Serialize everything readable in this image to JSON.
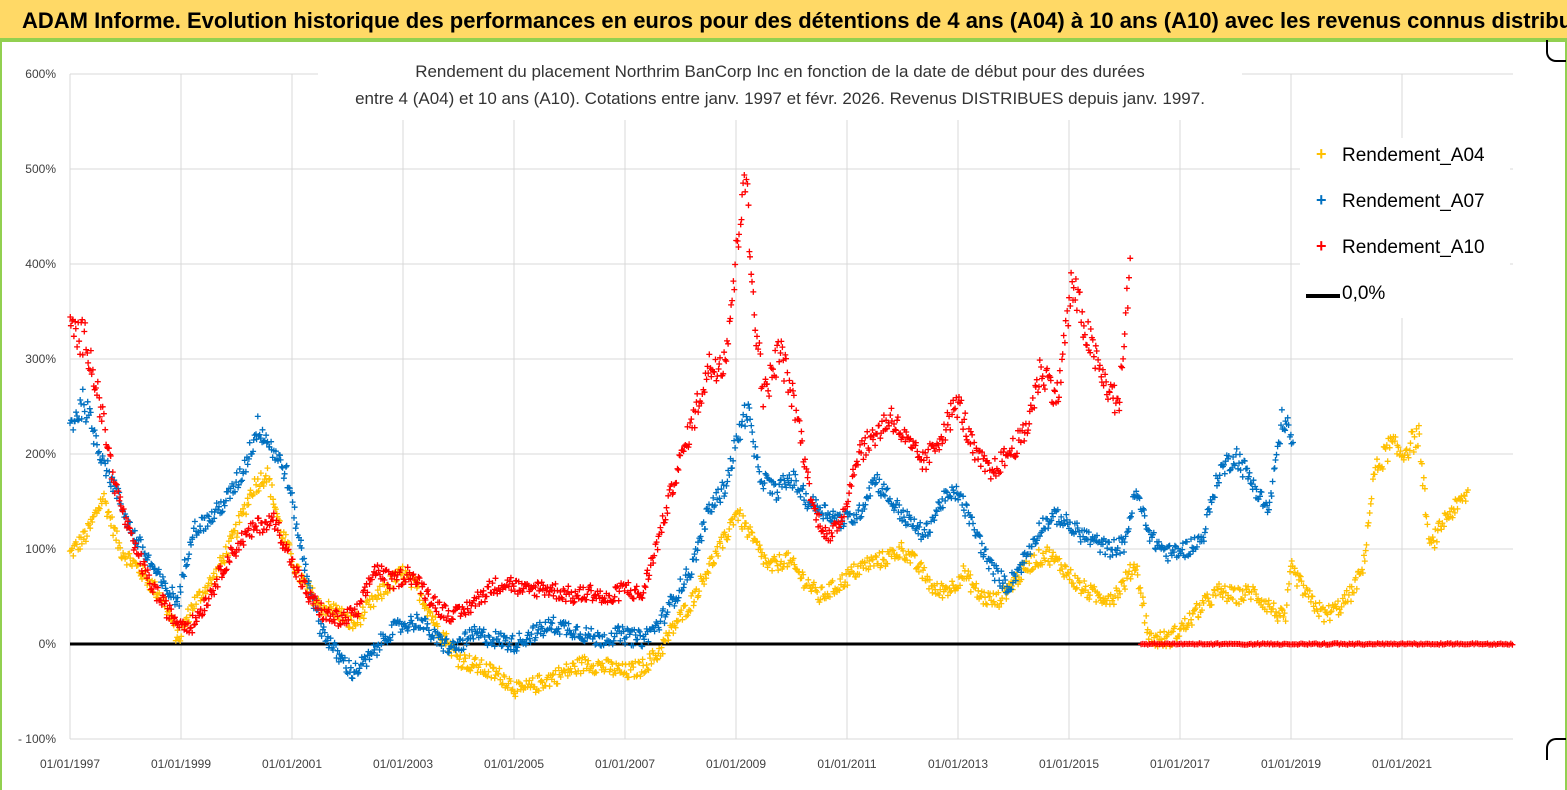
{
  "banner": {
    "title": "ADAM Informe. Evolution historique des performances en euros pour des détentions de 4 ans (A04) à 10 ans (A10) avec les revenus connus distribués"
  },
  "chart_data": {
    "type": "scatter",
    "title_line1": "Rendement du placement Northrim BanCorp Inc en fonction de la date de début pour des durées",
    "title_line2": "entre 4 (A04) et 10 ans (A10).  Cotations entre janv. 1997 et févr. 2026. Revenus DISTRIBUES depuis janv. 1997.",
    "xlim": [
      1997.0,
      2023.0
    ],
    "ylim": [
      -100,
      600
    ],
    "yticks": [
      -100,
      0,
      100,
      200,
      300,
      400,
      500,
      600
    ],
    "ytick_labels": [
      "- 100%",
      "0%",
      "100%",
      "200%",
      "300%",
      "400%",
      "500%",
      "600%"
    ],
    "xticks": [
      1997,
      1999,
      2001,
      2003,
      2005,
      2007,
      2009,
      2011,
      2013,
      2015,
      2017,
      2019,
      2021
    ],
    "xtick_labels": [
      "01/01/1997",
      "01/01/1999",
      "01/01/2001",
      "01/01/2003",
      "01/01/2005",
      "01/01/2007",
      "01/01/2009",
      "01/01/2011",
      "01/01/2013",
      "01/01/2015",
      "01/01/2017",
      "01/01/2019",
      "01/01/2021"
    ],
    "gridlines_at": [
      -100,
      0,
      100,
      200,
      300,
      400,
      500,
      600
    ],
    "legend_position": "top-right",
    "series": [
      {
        "name": "Rendement_A04",
        "color": "#ffc000",
        "marker": "+",
        "x_end": 2022.2,
        "knots": [
          [
            1997.0,
            95
          ],
          [
            1997.3,
            115
          ],
          [
            1997.6,
            155
          ],
          [
            1997.9,
            100
          ],
          [
            1998.3,
            75
          ],
          [
            1998.7,
            45
          ],
          [
            1998.95,
            5
          ],
          [
            1999.2,
            40
          ],
          [
            1999.6,
            70
          ],
          [
            2000.0,
            120
          ],
          [
            2000.3,
            165
          ],
          [
            2000.55,
            180
          ],
          [
            2000.8,
            120
          ],
          [
            2001.1,
            75
          ],
          [
            2001.5,
            40
          ],
          [
            2001.8,
            35
          ],
          [
            2002.1,
            20
          ],
          [
            2002.4,
            40
          ],
          [
            2002.7,
            60
          ],
          [
            2003.0,
            75
          ],
          [
            2003.3,
            55
          ],
          [
            2003.6,
            20
          ],
          [
            2004.0,
            -15
          ],
          [
            2004.4,
            -25
          ],
          [
            2004.8,
            -35
          ],
          [
            2005.1,
            -50
          ],
          [
            2005.5,
            -40
          ],
          [
            2005.9,
            -30
          ],
          [
            2006.3,
            -20
          ],
          [
            2006.7,
            -25
          ],
          [
            2007.0,
            -30
          ],
          [
            2007.3,
            -25
          ],
          [
            2007.6,
            -10
          ],
          [
            2007.9,
            20
          ],
          [
            2008.2,
            45
          ],
          [
            2008.5,
            80
          ],
          [
            2008.8,
            110
          ],
          [
            2009.0,
            140
          ],
          [
            2009.3,
            110
          ],
          [
            2009.6,
            80
          ],
          [
            2009.9,
            90
          ],
          [
            2010.2,
            70
          ],
          [
            2010.5,
            50
          ],
          [
            2010.8,
            60
          ],
          [
            2011.1,
            75
          ],
          [
            2011.4,
            85
          ],
          [
            2011.7,
            90
          ],
          [
            2012.0,
            100
          ],
          [
            2012.3,
            80
          ],
          [
            2012.6,
            55
          ],
          [
            2012.9,
            60
          ],
          [
            2013.1,
            75
          ],
          [
            2013.4,
            50
          ],
          [
            2013.7,
            45
          ],
          [
            2014.0,
            65
          ],
          [
            2014.3,
            85
          ],
          [
            2014.6,
            95
          ],
          [
            2014.9,
            80
          ],
          [
            2015.2,
            60
          ],
          [
            2015.5,
            50
          ],
          [
            2015.8,
            50
          ],
          [
            2016.0,
            65
          ],
          [
            2016.2,
            85
          ],
          [
            2016.45,
            5
          ],
          [
            2016.8,
            5
          ],
          [
            2017.1,
            20
          ],
          [
            2017.4,
            40
          ],
          [
            2017.7,
            55
          ],
          [
            2018.0,
            50
          ],
          [
            2018.3,
            55
          ],
          [
            2018.6,
            40
          ],
          [
            2018.9,
            25
          ],
          [
            2019.0,
            80
          ],
          [
            2019.3,
            50
          ],
          [
            2019.6,
            30
          ],
          [
            2019.9,
            40
          ],
          [
            2020.1,
            55
          ],
          [
            2020.3,
            80
          ],
          [
            2020.5,
            180
          ],
          [
            2020.8,
            210
          ],
          [
            2021.0,
            200
          ],
          [
            2021.3,
            220
          ],
          [
            2021.5,
            100
          ],
          [
            2021.8,
            135
          ],
          [
            2022.0,
            145
          ],
          [
            2022.2,
            160
          ]
        ]
      },
      {
        "name": "Rendement_A07",
        "color": "#0070c0",
        "marker": "+",
        "x_end": 2019.05,
        "knots": [
          [
            1997.0,
            230
          ],
          [
            1997.25,
            255
          ],
          [
            1997.5,
            210
          ],
          [
            1997.8,
            165
          ],
          [
            1998.1,
            120
          ],
          [
            1998.4,
            90
          ],
          [
            1998.7,
            60
          ],
          [
            1998.95,
            45
          ],
          [
            1999.2,
            120
          ],
          [
            1999.5,
            130
          ],
          [
            1999.8,
            150
          ],
          [
            2000.1,
            180
          ],
          [
            2000.4,
            230
          ],
          [
            2000.6,
            210
          ],
          [
            2000.9,
            180
          ],
          [
            2001.2,
            90
          ],
          [
            2001.5,
            20
          ],
          [
            2001.8,
            -10
          ],
          [
            2002.1,
            -30
          ],
          [
            2002.4,
            -15
          ],
          [
            2002.7,
            10
          ],
          [
            2003.0,
            20
          ],
          [
            2003.3,
            25
          ],
          [
            2003.6,
            5
          ],
          [
            2003.9,
            -5
          ],
          [
            2004.3,
            10
          ],
          [
            2004.7,
            5
          ],
          [
            2005.0,
            0
          ],
          [
            2005.3,
            10
          ],
          [
            2005.7,
            20
          ],
          [
            2006.1,
            15
          ],
          [
            2006.5,
            5
          ],
          [
            2006.9,
            10
          ],
          [
            2007.3,
            5
          ],
          [
            2007.6,
            20
          ],
          [
            2007.9,
            50
          ],
          [
            2008.2,
            80
          ],
          [
            2008.5,
            140
          ],
          [
            2008.8,
            165
          ],
          [
            2009.0,
            210
          ],
          [
            2009.2,
            250
          ],
          [
            2009.4,
            180
          ],
          [
            2009.7,
            160
          ],
          [
            2010.0,
            175
          ],
          [
            2010.3,
            150
          ],
          [
            2010.6,
            140
          ],
          [
            2010.9,
            130
          ],
          [
            2011.2,
            135
          ],
          [
            2011.5,
            175
          ],
          [
            2011.8,
            150
          ],
          [
            2012.1,
            130
          ],
          [
            2012.4,
            115
          ],
          [
            2012.7,
            150
          ],
          [
            2013.0,
            160
          ],
          [
            2013.3,
            120
          ],
          [
            2013.6,
            80
          ],
          [
            2013.9,
            60
          ],
          [
            2014.2,
            90
          ],
          [
            2014.5,
            125
          ],
          [
            2014.8,
            135
          ],
          [
            2015.1,
            120
          ],
          [
            2015.4,
            110
          ],
          [
            2015.7,
            100
          ],
          [
            2016.0,
            105
          ],
          [
            2016.2,
            160
          ],
          [
            2016.5,
            110
          ],
          [
            2016.8,
            95
          ],
          [
            2017.1,
            100
          ],
          [
            2017.4,
            110
          ],
          [
            2017.7,
            180
          ],
          [
            2018.0,
            200
          ],
          [
            2018.3,
            170
          ],
          [
            2018.6,
            140
          ],
          [
            2018.85,
            240
          ],
          [
            2019.05,
            210
          ]
        ]
      },
      {
        "name": "Rendement_A10",
        "color": "#ff0000",
        "marker": "+",
        "x_end": 2016.1,
        "knots": [
          [
            1997.0,
            330
          ],
          [
            1997.3,
            320
          ],
          [
            1997.55,
            250
          ],
          [
            1997.8,
            170
          ],
          [
            1998.1,
            110
          ],
          [
            1998.4,
            70
          ],
          [
            1998.7,
            40
          ],
          [
            1998.9,
            25
          ],
          [
            1999.2,
            20
          ],
          [
            1999.5,
            50
          ],
          [
            1999.8,
            85
          ],
          [
            2000.1,
            110
          ],
          [
            2000.4,
            125
          ],
          [
            2000.7,
            130
          ],
          [
            2001.0,
            85
          ],
          [
            2001.3,
            50
          ],
          [
            2001.6,
            30
          ],
          [
            2001.9,
            25
          ],
          [
            2002.2,
            35
          ],
          [
            2002.5,
            80
          ],
          [
            2002.8,
            65
          ],
          [
            2003.1,
            75
          ],
          [
            2003.4,
            55
          ],
          [
            2003.7,
            35
          ],
          [
            2004.0,
            30
          ],
          [
            2004.3,
            45
          ],
          [
            2004.6,
            60
          ],
          [
            2004.9,
            65
          ],
          [
            2005.2,
            55
          ],
          [
            2005.5,
            60
          ],
          [
            2005.8,
            55
          ],
          [
            2006.1,
            50
          ],
          [
            2006.4,
            55
          ],
          [
            2006.7,
            45
          ],
          [
            2007.0,
            60
          ],
          [
            2007.3,
            50
          ],
          [
            2007.6,
            110
          ],
          [
            2007.9,
            175
          ],
          [
            2008.2,
            230
          ],
          [
            2008.5,
            290
          ],
          [
            2008.8,
            300
          ],
          [
            2009.0,
            400
          ],
          [
            2009.15,
            510
          ],
          [
            2009.3,
            370
          ],
          [
            2009.5,
            260
          ],
          [
            2009.8,
            310
          ],
          [
            2010.1,
            240
          ],
          [
            2010.4,
            140
          ],
          [
            2010.7,
            110
          ],
          [
            2010.95,
            140
          ],
          [
            2011.2,
            200
          ],
          [
            2011.5,
            220
          ],
          [
            2011.8,
            240
          ],
          [
            2012.1,
            210
          ],
          [
            2012.4,
            190
          ],
          [
            2012.7,
            220
          ],
          [
            2013.0,
            255
          ],
          [
            2013.3,
            200
          ],
          [
            2013.6,
            180
          ],
          [
            2013.9,
            200
          ],
          [
            2014.2,
            220
          ],
          [
            2014.5,
            290
          ],
          [
            2014.8,
            260
          ],
          [
            2015.05,
            380
          ],
          [
            2015.3,
            330
          ],
          [
            2015.6,
            280
          ],
          [
            2015.9,
            250
          ],
          [
            2016.1,
            400
          ]
        ]
      },
      {
        "name": "0,0%",
        "color": "#000000",
        "marker": "line",
        "knots": [
          [
            1997.0,
            0
          ],
          [
            2016.3,
            0
          ]
        ]
      }
    ],
    "flat_red_zero": {
      "from": 2016.3,
      "to": 2023.0,
      "value": 0
    }
  },
  "legend": {
    "items": [
      {
        "label": "Rendement_A04",
        "symbol": "+",
        "color": "#ffc000"
      },
      {
        "label": "Rendement_A07",
        "symbol": "+",
        "color": "#0070c0"
      },
      {
        "label": "Rendement_A10",
        "symbol": "+",
        "color": "#ff0000"
      },
      {
        "label": "0,0%",
        "symbol": "line",
        "color": "#000000"
      }
    ]
  }
}
